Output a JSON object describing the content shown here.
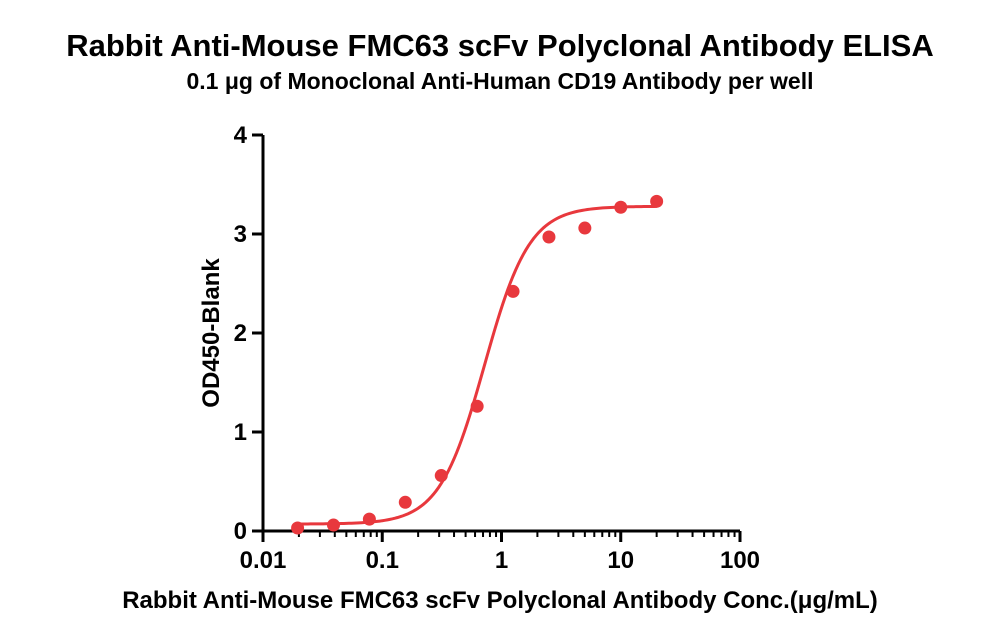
{
  "chart_data": {
    "type": "scatter",
    "title": "Rabbit Anti-Mouse FMC63 scFv Polyclonal Antibody ELISA",
    "subtitle": "0.1 μg of Monoclonal Anti-Human CD19 Antibody per well",
    "xlabel": "Rabbit Anti-Mouse FMC63 scFv Polyclonal Antibody Conc.(μg/mL)",
    "ylabel": "OD450-Blank",
    "x_scale": "log",
    "xlim": [
      0.01,
      100
    ],
    "ylim": [
      0,
      4
    ],
    "x_ticks": [
      "0.01",
      "0.1",
      "1",
      "10",
      "100"
    ],
    "y_ticks": [
      "0",
      "1",
      "2",
      "3",
      "4"
    ],
    "grid": false,
    "series": [
      {
        "color": "#e8383d",
        "x": [
          0.0195,
          0.039,
          0.078,
          0.156,
          0.3125,
          0.625,
          1.25,
          2.5,
          5,
          10,
          20
        ],
        "y": [
          0.03,
          0.06,
          0.12,
          0.29,
          0.56,
          1.26,
          2.42,
          2.97,
          3.06,
          3.27,
          3.33
        ],
        "fit": {
          "model": "4PL",
          "bottom": 0.07,
          "top": 3.28,
          "ec50": 0.72,
          "hill": 2.3
        }
      }
    ]
  }
}
